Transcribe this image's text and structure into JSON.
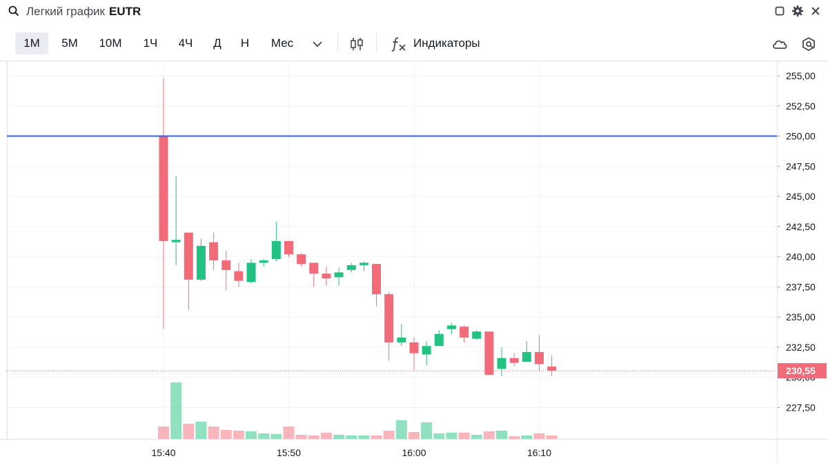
{
  "header": {
    "search_label": "Легкий график",
    "ticker": "EUTR"
  },
  "toolbar": {
    "timeframes": [
      "1М",
      "5М",
      "10М",
      "1Ч",
      "4Ч",
      "Д",
      "Н",
      "Мес"
    ],
    "active_timeframe": "1М",
    "indicators_label": "Индикаторы"
  },
  "icons": {
    "search": "search-icon",
    "maximize": "square-icon",
    "settings": "gear-icon",
    "close": "close-icon",
    "dropdown": "chevron-down-icon",
    "chart_type": "candles-icon",
    "indicators": "fx-icon",
    "cloud": "cloud-icon",
    "snapshot": "camera-icon"
  },
  "colors": {
    "up": "#26a69a",
    "up_fill": "#22c382",
    "down": "#f16b78",
    "level_line": "#2962ff",
    "price_label_bg": "#f16b78"
  },
  "chart_data": {
    "type": "candlestick",
    "title": "",
    "xlabel": "",
    "ylabel": "",
    "ylim": [
      224.9,
      256.2
    ],
    "y_ticks": [
      "255,00",
      "252,50",
      "250,00",
      "247,50",
      "245,00",
      "242,50",
      "240,00",
      "237,50",
      "235,00",
      "232,50",
      "230,00",
      "227,50"
    ],
    "y_tick_values": [
      255,
      252.5,
      250,
      247.5,
      245,
      242.5,
      240,
      237.5,
      235,
      232.5,
      230,
      227.5
    ],
    "x_ticks": [
      "15:40",
      "15:50",
      "16:00",
      "16:10"
    ],
    "x_tick_values": [
      "15:40",
      "15:50",
      "16:00",
      "16:10"
    ],
    "horizontal_level": 250.0,
    "last_price": 230.55,
    "last_price_label": "230,55",
    "candles": [
      {
        "t": "15:40",
        "o": 250.0,
        "h": 254.8,
        "l": 234.0,
        "c": 241.3
      },
      {
        "t": "15:41",
        "o": 241.2,
        "h": 246.7,
        "l": 239.3,
        "c": 241.4
      },
      {
        "t": "15:42",
        "o": 242.0,
        "h": 242.0,
        "l": 235.6,
        "c": 238.1
      },
      {
        "t": "15:43",
        "o": 238.1,
        "h": 241.5,
        "l": 238.0,
        "c": 240.9
      },
      {
        "t": "15:44",
        "o": 241.2,
        "h": 242.0,
        "l": 238.9,
        "c": 239.7
      },
      {
        "t": "15:45",
        "o": 239.7,
        "h": 240.5,
        "l": 237.2,
        "c": 238.9
      },
      {
        "t": "15:46",
        "o": 238.8,
        "h": 239.5,
        "l": 237.5,
        "c": 238.0
      },
      {
        "t": "15:47",
        "o": 237.9,
        "h": 239.8,
        "l": 237.8,
        "c": 239.5
      },
      {
        "t": "15:48",
        "o": 239.5,
        "h": 239.8,
        "l": 239.2,
        "c": 239.7
      },
      {
        "t": "15:49",
        "o": 239.8,
        "h": 242.9,
        "l": 239.6,
        "c": 241.3
      },
      {
        "t": "15:50",
        "o": 241.3,
        "h": 241.3,
        "l": 240.0,
        "c": 240.2
      },
      {
        "t": "15:51",
        "o": 240.2,
        "h": 240.3,
        "l": 239.2,
        "c": 239.4
      },
      {
        "t": "15:52",
        "o": 239.5,
        "h": 239.5,
        "l": 237.5,
        "c": 238.6
      },
      {
        "t": "15:53",
        "o": 238.6,
        "h": 239.2,
        "l": 237.6,
        "c": 238.2
      },
      {
        "t": "15:54",
        "o": 238.3,
        "h": 239.1,
        "l": 237.6,
        "c": 238.7
      },
      {
        "t": "15:55",
        "o": 238.9,
        "h": 239.5,
        "l": 238.7,
        "c": 239.3
      },
      {
        "t": "15:56",
        "o": 239.3,
        "h": 239.6,
        "l": 238.8,
        "c": 239.5
      },
      {
        "t": "15:57",
        "o": 239.4,
        "h": 239.4,
        "l": 235.9,
        "c": 236.9
      },
      {
        "t": "15:58",
        "o": 236.9,
        "h": 237.1,
        "l": 231.4,
        "c": 232.9
      },
      {
        "t": "15:59",
        "o": 232.9,
        "h": 234.4,
        "l": 232.6,
        "c": 233.3
      },
      {
        "t": "16:00",
        "o": 232.9,
        "h": 233.3,
        "l": 230.6,
        "c": 232.0
      },
      {
        "t": "16:01",
        "o": 231.9,
        "h": 233.0,
        "l": 231.0,
        "c": 232.6
      },
      {
        "t": "16:02",
        "o": 232.6,
        "h": 233.9,
        "l": 232.6,
        "c": 233.6
      },
      {
        "t": "16:03",
        "o": 234.0,
        "h": 234.5,
        "l": 233.6,
        "c": 234.3
      },
      {
        "t": "16:04",
        "o": 234.2,
        "h": 234.3,
        "l": 232.9,
        "c": 233.3
      },
      {
        "t": "16:05",
        "o": 233.2,
        "h": 233.9,
        "l": 233.1,
        "c": 233.8
      },
      {
        "t": "16:06",
        "o": 233.8,
        "h": 233.8,
        "l": 230.2,
        "c": 230.2
      },
      {
        "t": "16:07",
        "o": 230.7,
        "h": 232.5,
        "l": 230.1,
        "c": 231.6
      },
      {
        "t": "16:08",
        "o": 231.6,
        "h": 232.0,
        "l": 230.9,
        "c": 231.2
      },
      {
        "t": "16:09",
        "o": 231.3,
        "h": 233.0,
        "l": 231.3,
        "c": 232.1
      },
      {
        "t": "16:10",
        "o": 232.1,
        "h": 233.5,
        "l": 230.5,
        "c": 231.1
      },
      {
        "t": "16:11",
        "o": 230.9,
        "h": 231.8,
        "l": 230.1,
        "c": 230.55
      }
    ],
    "volumes": [
      18,
      82,
      22,
      25,
      18,
      13,
      12,
      11,
      8,
      7,
      18,
      6,
      5,
      9,
      6,
      5,
      5,
      5,
      12,
      27,
      10,
      24,
      8,
      9,
      9,
      6,
      11,
      12,
      4,
      5,
      8,
      5
    ]
  }
}
